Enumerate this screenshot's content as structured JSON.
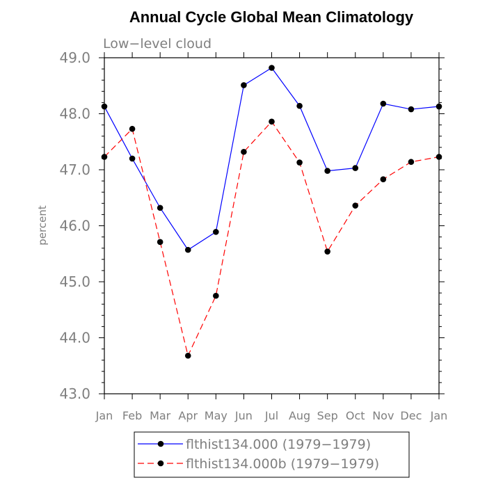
{
  "chart_data": {
    "type": "line",
    "title": "Annual Cycle Global Mean Climatology",
    "subtitle": "Low−level cloud",
    "ylabel": "percent",
    "xlabel": "",
    "ylim": [
      43.0,
      49.0
    ],
    "yticks": [
      "43.0",
      "44.0",
      "45.0",
      "46.0",
      "47.0",
      "48.0",
      "49.0"
    ],
    "categories": [
      "Jan",
      "Feb",
      "Mar",
      "Apr",
      "May",
      "Jun",
      "Jul",
      "Aug",
      "Sep",
      "Oct",
      "Nov",
      "Dec",
      "Jan"
    ],
    "series": [
      {
        "name": "flthist134.000 (1979−1979)",
        "color": "#0000ff",
        "line_style": "solid",
        "values": [
          48.13,
          47.2,
          46.32,
          45.57,
          45.89,
          48.51,
          48.82,
          48.14,
          46.98,
          47.03,
          48.18,
          48.08,
          48.13
        ]
      },
      {
        "name": "flthist134.000b (1979−1979)",
        "color": "#ff0000",
        "line_style": "dashed",
        "values": [
          47.23,
          47.73,
          45.71,
          43.68,
          44.75,
          47.32,
          47.86,
          47.13,
          45.54,
          46.36,
          46.83,
          47.14,
          47.23
        ]
      }
    ],
    "legend_position": "bottom"
  }
}
